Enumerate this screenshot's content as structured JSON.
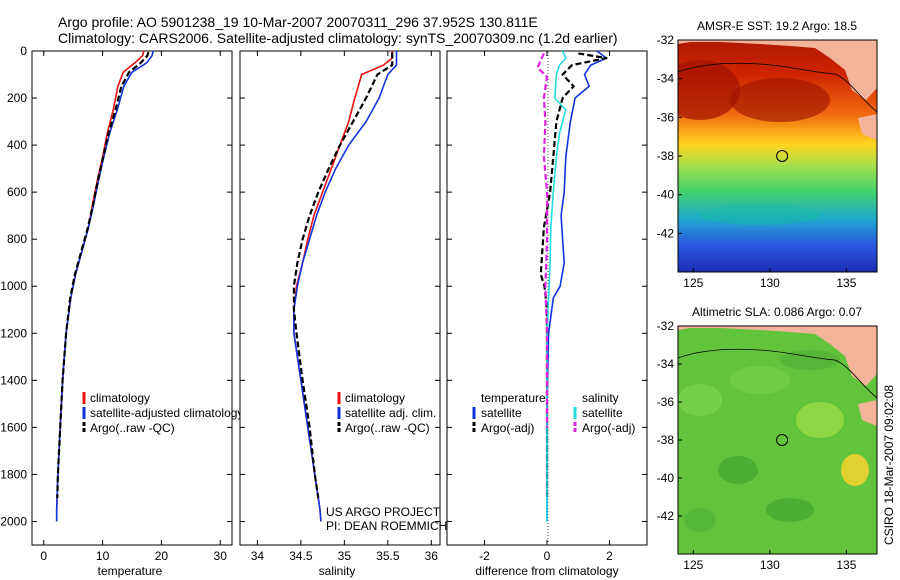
{
  "header": {
    "line1": "Argo profile: AO 5901238_19 10-Mar-2007 20070311_296 37.952S 130.811E",
    "line2": "Climatology: CARS2006. Satellite-adjusted climatology: synTS_20070309.nc (1.2d earlier)"
  },
  "colors": {
    "climatology": "#ee1111",
    "satellite": "#1133dd",
    "argo": "#000000",
    "salinity_satellite": "#22dddd",
    "salinity_argo": "#dd22dd",
    "land": "#f4b49a",
    "map_circle": "#000000"
  },
  "chart_data": [
    {
      "id": "temperature",
      "type": "line",
      "title": "",
      "xlabel": "temperature",
      "ylabel": "",
      "xlim": [
        -2,
        32
      ],
      "ylim": [
        2100,
        0
      ],
      "xticks": [
        0,
        10,
        20,
        30
      ],
      "yticks": [
        0,
        200,
        400,
        600,
        800,
        1000,
        1200,
        1400,
        1600,
        1800,
        2000
      ],
      "series": [
        {
          "name": "climatology",
          "color": "#ee1111",
          "dash": "solid",
          "x": [
            17.0,
            16.8,
            15.5,
            13.5,
            12.6,
            11.8,
            10.8,
            10.0,
            9.1,
            8.3,
            7.6,
            6.5,
            5.4,
            4.6,
            3.8,
            3.2,
            2.8,
            2.4,
            2.2,
            2.2
          ],
          "y": [
            0,
            20,
            50,
            90,
            150,
            250,
            350,
            450,
            550,
            650,
            750,
            850,
            950,
            1050,
            1200,
            1400,
            1600,
            1800,
            1950,
            2000
          ]
        },
        {
          "name": "satellite-adjusted climatology",
          "color": "#1133dd",
          "dash": "solid",
          "x": [
            18.6,
            18.4,
            17.5,
            15.0,
            13.6,
            12.5,
            11.2,
            10.2,
            9.3,
            8.5,
            7.6,
            6.5,
            5.4,
            4.6,
            3.8,
            3.2,
            2.8,
            2.4,
            2.2,
            2.2
          ],
          "y": [
            0,
            20,
            50,
            90,
            150,
            250,
            350,
            450,
            550,
            650,
            750,
            850,
            950,
            1050,
            1200,
            1400,
            1600,
            1800,
            1950,
            2000
          ]
        },
        {
          "name": "Argo(..raw -QC)",
          "color": "#000000",
          "dash": "dashed",
          "x": [
            17.8,
            17.6,
            16.5,
            14.5,
            13.2,
            12.2,
            11.0,
            10.1,
            9.2,
            8.4,
            7.5,
            6.4,
            5.3,
            4.5,
            3.8,
            3.2,
            2.8,
            2.4,
            2.3
          ],
          "y": [
            5,
            20,
            50,
            90,
            150,
            250,
            350,
            450,
            550,
            650,
            750,
            850,
            950,
            1050,
            1200,
            1400,
            1600,
            1800,
            1900
          ]
        }
      ],
      "legend": [
        "climatology",
        "satellite-adjusted climatology",
        "Argo(..raw -QC)"
      ],
      "legend_position": "bottom-right"
    },
    {
      "id": "salinity",
      "type": "line",
      "title": "",
      "xlabel": "salinity",
      "ylabel": "",
      "xlim": [
        33.8,
        36.1
      ],
      "ylim": [
        2100,
        0
      ],
      "xticks": [
        34,
        34.5,
        35,
        35.5,
        36
      ],
      "xtick_labels": [
        "34",
        "34.5",
        "35",
        "35.5",
        "36"
      ],
      "series": [
        {
          "name": "climatology",
          "color": "#ee1111",
          "dash": "solid",
          "x": [
            35.55,
            35.55,
            35.45,
            35.2,
            35.12,
            35.05,
            34.95,
            34.85,
            34.75,
            34.65,
            34.58,
            34.52,
            34.45,
            34.42,
            34.42,
            34.5,
            34.58,
            34.66,
            34.72,
            34.73
          ],
          "y": [
            0,
            30,
            60,
            100,
            200,
            300,
            400,
            500,
            600,
            700,
            800,
            900,
            1000,
            1100,
            1200,
            1400,
            1600,
            1800,
            1950,
            2000
          ]
        },
        {
          "name": "satellite adj. clim.",
          "color": "#1133dd",
          "dash": "solid",
          "x": [
            35.6,
            35.6,
            35.6,
            35.5,
            35.4,
            35.25,
            35.05,
            34.9,
            34.78,
            34.68,
            34.6,
            34.52,
            34.46,
            34.42,
            34.42,
            34.5,
            34.58,
            34.66,
            34.72,
            34.73
          ],
          "y": [
            0,
            30,
            60,
            100,
            200,
            300,
            400,
            500,
            600,
            700,
            800,
            900,
            1000,
            1100,
            1200,
            1400,
            1600,
            1800,
            1950,
            2000
          ]
        },
        {
          "name": "Argo(..raw -QC)",
          "color": "#000000",
          "dash": "dashed",
          "x": [
            35.55,
            35.55,
            35.55,
            35.38,
            35.25,
            35.1,
            34.95,
            34.82,
            34.7,
            34.6,
            34.52,
            34.46,
            34.42,
            34.42,
            34.45,
            34.52,
            34.6,
            34.66,
            34.7
          ],
          "y": [
            5,
            30,
            60,
            100,
            200,
            300,
            400,
            500,
            600,
            700,
            800,
            900,
            1000,
            1100,
            1200,
            1400,
            1600,
            1800,
            1900
          ]
        }
      ],
      "legend": [
        "climatology",
        "satellite adj. clim.",
        "Argo(..raw -QC)"
      ],
      "legend_position": "bottom-right",
      "annotation": [
        "US ARGO PROJECT",
        "PI: DEAN ROEMMICH"
      ]
    },
    {
      "id": "difference",
      "type": "line",
      "title": "",
      "xlabel": "difference from climatology",
      "ylabel": "",
      "xlim": [
        -3.2,
        3.2
      ],
      "ylim": [
        2100,
        0
      ],
      "xticks": [
        -2,
        0,
        2
      ],
      "series": [
        {
          "name": "temperature satellite",
          "color": "#1133dd",
          "dash": "solid",
          "x": [
            1.6,
            1.9,
            1.4,
            1.2,
            1.35,
            0.9,
            0.75,
            0.6,
            0.55,
            0.45,
            0.5,
            0.55,
            0.42,
            0.2,
            0.05,
            0.0,
            0.0,
            0.0
          ],
          "y": [
            0,
            30,
            60,
            100,
            150,
            200,
            300,
            450,
            600,
            700,
            800,
            900,
            1000,
            1050,
            1200,
            1500,
            1800,
            2000
          ]
        },
        {
          "name": "temperature Argo(-adj)",
          "color": "#000000",
          "dash": "dashed",
          "x": [
            1.0,
            1.9,
            0.8,
            0.5,
            0.85,
            0.5,
            0.3,
            0.2,
            0.1,
            -0.1,
            -0.15,
            -0.2,
            -0.08,
            0.0,
            0.0,
            0.0
          ],
          "y": [
            10,
            30,
            60,
            100,
            150,
            200,
            300,
            450,
            600,
            750,
            850,
            950,
            1000,
            1100,
            1500,
            1900
          ]
        },
        {
          "name": "salinity satellite",
          "color": "#22dddd",
          "dash": "solid",
          "x": [
            0.5,
            0.6,
            0.4,
            0.3,
            0.25,
            0.6,
            0.4,
            0.3,
            0.2,
            0.12,
            0.1,
            0.05,
            0.0,
            0.0,
            0.0
          ],
          "y": [
            0,
            30,
            60,
            100,
            200,
            250,
            350,
            450,
            600,
            750,
            900,
            1050,
            1200,
            1500,
            2000
          ]
        },
        {
          "name": "salinity Argo(-adj)",
          "color": "#dd22dd",
          "dash": "dashed",
          "x": [
            -0.1,
            -0.2,
            -0.3,
            0.0,
            -0.1,
            -0.05,
            -0.1,
            0.0,
            0.0,
            -0.05,
            0.0,
            0.0
          ],
          "y": [
            10,
            40,
            70,
            110,
            200,
            300,
            450,
            600,
            800,
            1000,
            1200,
            1600
          ]
        }
      ],
      "legend_temperature_title": "temperature",
      "legend_salinity_title": "salinity",
      "legend_temperature": [
        "satellite",
        "Argo(-adj)"
      ],
      "legend_salinity": [
        "satellite",
        "Argo(-adj)"
      ],
      "legend_position": "bottom"
    },
    {
      "id": "sst_map",
      "type": "heatmap",
      "title": "AMSR-E SST: 19.2 Argo: 18.5",
      "xlim": [
        124,
        137
      ],
      "ylim": [
        -44,
        -32
      ],
      "xticks": [
        125,
        130,
        135
      ],
      "yticks": [
        -32,
        -34,
        -36,
        -38,
        -40,
        -42
      ],
      "profile_location": {
        "lon": 130.8,
        "lat": -38.0
      },
      "value_range_label": "SST"
    },
    {
      "id": "sla_map",
      "type": "heatmap",
      "title": "Altimetric SLA: 0.086 Argo: 0.07",
      "xlim": [
        124,
        137
      ],
      "ylim": [
        -44,
        -32
      ],
      "xticks": [
        125,
        130,
        135
      ],
      "yticks": [
        -32,
        -34,
        -36,
        -38,
        -40,
        -42
      ],
      "profile_location": {
        "lon": 130.8,
        "lat": -38.0
      }
    }
  ],
  "footer": {
    "credit": "CSIRO 18-Mar-2007 09:02:08"
  }
}
